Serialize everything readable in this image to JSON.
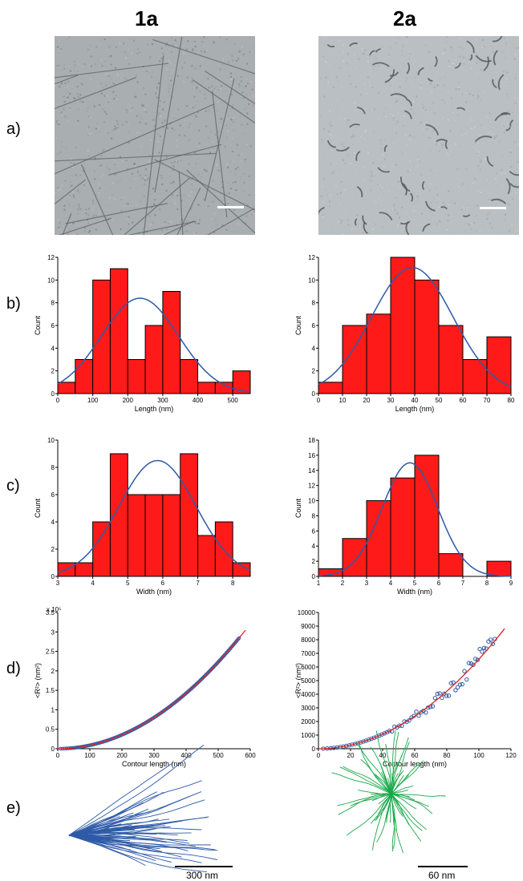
{
  "columns": {
    "left": "1a",
    "right": "2a"
  },
  "row_labels": {
    "a": "a)",
    "b": "b)",
    "c": "c)",
    "d": "d)",
    "e": "e)"
  },
  "colors": {
    "bar": "#ff1a1a",
    "fit": "#2e5aa8",
    "fitline": "#e02020",
    "points": "#2e5aa8",
    "contour_1a": "#2e5aa8",
    "contour_2a": "#1aa84a"
  },
  "scalebars": {
    "left": "300 nm",
    "right": "60 nm"
  },
  "chart_data": [
    {
      "id": "b1a",
      "type": "bar",
      "xlabel": "Length (nm)",
      "ylabel": "Count",
      "xlim": [
        0,
        550
      ],
      "ylim": [
        0,
        12
      ],
      "xticks": [
        0,
        100,
        200,
        300,
        400,
        500
      ],
      "yticks": [
        0,
        2,
        4,
        6,
        8,
        10,
        12
      ],
      "bins": [
        [
          0,
          50,
          1
        ],
        [
          50,
          100,
          3
        ],
        [
          100,
          150,
          10
        ],
        [
          150,
          200,
          11
        ],
        [
          200,
          250,
          3
        ],
        [
          250,
          300,
          6
        ],
        [
          300,
          350,
          9
        ],
        [
          350,
          400,
          3
        ],
        [
          400,
          450,
          1
        ],
        [
          450,
          500,
          1
        ],
        [
          500,
          550,
          2
        ]
      ],
      "fit": {
        "mu": 235,
        "sigma": 110,
        "amp": 8.4
      }
    },
    {
      "id": "b2a",
      "type": "bar",
      "xlabel": "Length (nm)",
      "ylabel": "Count",
      "xlim": [
        0,
        80
      ],
      "ylim": [
        0,
        12
      ],
      "xticks": [
        0,
        10,
        20,
        30,
        40,
        50,
        60,
        70,
        80
      ],
      "yticks": [
        0,
        2,
        4,
        6,
        8,
        10,
        12
      ],
      "bins": [
        [
          0,
          10,
          1
        ],
        [
          10,
          20,
          6
        ],
        [
          20,
          30,
          7
        ],
        [
          30,
          40,
          12
        ],
        [
          40,
          50,
          10
        ],
        [
          50,
          60,
          6
        ],
        [
          60,
          70,
          3
        ],
        [
          70,
          80,
          5
        ]
      ],
      "fit": {
        "mu": 39,
        "sigma": 17,
        "amp": 11.1
      }
    },
    {
      "id": "c1a",
      "type": "bar",
      "xlabel": "Width (nm)",
      "ylabel": "Count",
      "xlim": [
        3,
        8.5
      ],
      "ylim": [
        0,
        10
      ],
      "xticks": [
        3,
        4,
        5,
        6,
        7,
        8
      ],
      "yticks": [
        0,
        2,
        4,
        6,
        8,
        10
      ],
      "bins": [
        [
          3,
          3.5,
          1
        ],
        [
          3.5,
          4,
          1
        ],
        [
          4,
          4.5,
          4
        ],
        [
          4.5,
          5,
          9
        ],
        [
          5,
          5.5,
          6
        ],
        [
          5.5,
          6,
          6
        ],
        [
          6,
          6.5,
          6
        ],
        [
          6.5,
          7,
          9
        ],
        [
          7,
          7.5,
          3
        ],
        [
          7.5,
          8,
          4
        ],
        [
          8,
          8.5,
          1
        ]
      ],
      "fit": {
        "mu": 5.85,
        "sigma": 1.1,
        "amp": 8.5
      }
    },
    {
      "id": "c2a",
      "type": "bar",
      "xlabel": "Width (nm)",
      "ylabel": "Count",
      "xlim": [
        1,
        9
      ],
      "ylim": [
        0,
        18
      ],
      "xticks": [
        1,
        2,
        3,
        4,
        5,
        6,
        7,
        8,
        9
      ],
      "yticks": [
        0,
        2,
        4,
        6,
        8,
        10,
        12,
        14,
        16,
        18
      ],
      "bins": [
        [
          1,
          2,
          1
        ],
        [
          2,
          3,
          5
        ],
        [
          3,
          4,
          10
        ],
        [
          4,
          5,
          13
        ],
        [
          5,
          6,
          16
        ],
        [
          6,
          7,
          3
        ],
        [
          8,
          9,
          2
        ]
      ],
      "fit": {
        "mu": 4.8,
        "sigma": 1.15,
        "amp": 15
      }
    },
    {
      "id": "d1a",
      "type": "scatter",
      "xlabel": "Contour length (nm)",
      "ylabel": "<R²> (nm²)",
      "ymultiplier": "x 10⁵",
      "xlim": [
        0,
        600
      ],
      "ylim": [
        0,
        3.5
      ],
      "xticks": [
        0,
        100,
        200,
        300,
        400,
        500,
        600
      ],
      "yticks": [
        0,
        0.5,
        1,
        1.5,
        2,
        2.5,
        3,
        3.5
      ],
      "ytick_labels": [
        "0",
        "0.5",
        "1",
        "1.5",
        "2",
        "2.5",
        "3",
        "3.5"
      ],
      "curve": {
        "coef": 8.9e-06,
        "power": 2,
        "xmax": 565,
        "fitxmax": 585
      }
    },
    {
      "id": "d2a",
      "type": "scatter",
      "xlabel": "Contour length (nm)",
      "ylabel": "<R²> (nm²)",
      "xlim": [
        0,
        120
      ],
      "ylim": [
        0,
        10000
      ],
      "xticks": [
        0,
        20,
        40,
        60,
        80,
        100,
        120
      ],
      "yticks": [
        0,
        1000,
        2000,
        3000,
        4000,
        5000,
        6000,
        7000,
        8000,
        9000,
        10000
      ],
      "ytick_labels": [
        "0",
        "1000",
        "2000",
        "3000",
        "4000",
        "5000",
        "6000",
        "7000",
        "8000",
        "9000",
        "10000"
      ],
      "curve": {
        "coef": 0.72,
        "power": 1.98,
        "xmax": 110,
        "fitxmax": 116
      }
    }
  ]
}
